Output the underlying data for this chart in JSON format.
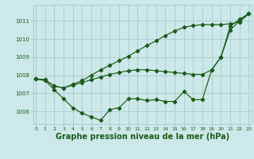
{
  "bg_color": "#cce8e8",
  "grid_color": "#aacccc",
  "line_color": "#1a5c1a",
  "xlabel": "Graphe pression niveau de la mer (hPa)",
  "xlabel_fontsize": 7.0,
  "yticks": [
    1006,
    1007,
    1008,
    1009,
    1010,
    1011
  ],
  "xticks": [
    0,
    1,
    2,
    3,
    4,
    5,
    6,
    7,
    8,
    9,
    10,
    11,
    12,
    13,
    14,
    15,
    16,
    17,
    18,
    19,
    20,
    21,
    22,
    23
  ],
  "xlim": [
    -0.3,
    23.3
  ],
  "ylim": [
    1005.3,
    1011.9
  ],
  "s1_x": [
    0,
    1,
    2,
    3,
    4,
    5,
    6,
    7,
    8,
    9,
    10,
    11,
    12,
    13,
    14,
    15,
    16,
    17,
    18,
    19,
    20,
    21,
    22,
    23
  ],
  "s1_y": [
    1007.8,
    1007.7,
    1007.2,
    1006.7,
    1006.2,
    1005.9,
    1005.7,
    1005.5,
    1006.1,
    1006.2,
    1006.7,
    1006.7,
    1006.6,
    1006.65,
    1006.55,
    1006.55,
    1007.1,
    1006.65,
    1006.65,
    1008.3,
    1009.0,
    1010.5,
    1011.0,
    1011.4
  ],
  "s2_x": [
    0,
    1,
    2,
    3,
    4,
    5,
    6,
    7,
    8,
    9,
    10,
    11,
    12,
    13,
    14,
    15,
    16,
    17,
    18,
    19,
    20,
    21,
    22,
    23
  ],
  "s2_y": [
    1007.8,
    1007.75,
    1007.4,
    1007.3,
    1007.45,
    1007.6,
    1007.75,
    1007.9,
    1008.05,
    1008.15,
    1008.25,
    1008.3,
    1008.3,
    1008.25,
    1008.2,
    1008.15,
    1008.1,
    1008.05,
    1008.05,
    1008.3,
    1009.0,
    1010.7,
    1011.1,
    1011.4
  ],
  "s3_x": [
    0,
    1,
    2,
    3,
    4,
    5,
    6,
    7,
    8,
    9,
    10,
    11,
    12,
    13,
    14,
    15,
    16,
    17,
    18,
    19,
    20,
    21,
    22,
    23
  ],
  "s3_y": [
    1007.8,
    1007.75,
    1007.4,
    1007.3,
    1007.5,
    1007.7,
    1008.0,
    1008.3,
    1008.55,
    1008.8,
    1009.05,
    1009.35,
    1009.65,
    1009.9,
    1010.2,
    1010.45,
    1010.65,
    1010.75,
    1010.8,
    1010.8,
    1010.8,
    1010.85,
    1010.95,
    1011.4
  ]
}
